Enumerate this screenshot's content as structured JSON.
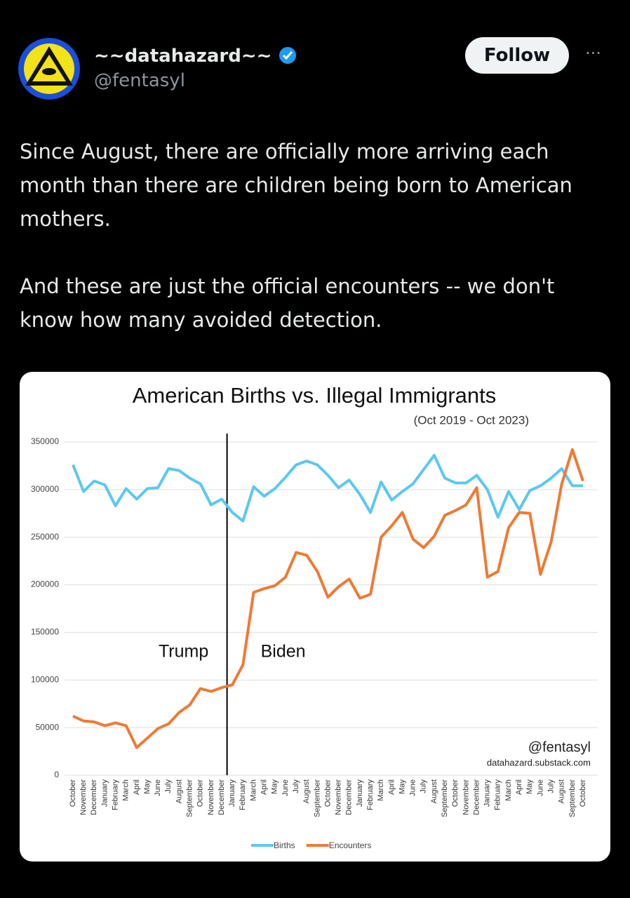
{
  "post": {
    "display_name": "~~datahazard~~",
    "handle": "@fentasyl",
    "follow_button": "Follow",
    "paragraphs": [
      "Since August, there are officially more arriving each month than there are children being born to American mothers.",
      "And these are just the official encounters -- we don't know how many avoided detection."
    ]
  },
  "chart_data": {
    "type": "line",
    "title": "American Births vs. Illegal Immigrants",
    "subtitle": "(Oct 2019 - Oct 2023)",
    "categories": [
      "October",
      "November",
      "December",
      "January",
      "February",
      "March",
      "April",
      "May",
      "June",
      "July",
      "August",
      "September",
      "October",
      "November",
      "December",
      "January",
      "February",
      "March",
      "April",
      "May",
      "June",
      "July",
      "August",
      "September",
      "October",
      "November",
      "December",
      "January",
      "February",
      "March",
      "April",
      "May",
      "June",
      "July",
      "August",
      "September",
      "October",
      "November",
      "December",
      "January",
      "February",
      "March",
      "April",
      "May",
      "June",
      "July",
      "August",
      "September",
      "October"
    ],
    "series": [
      {
        "name": "Births",
        "color": "#5cc8ee",
        "values": [
          326000,
          298000,
          309000,
          305000,
          283000,
          301000,
          290000,
          301000,
          302000,
          322000,
          320000,
          312000,
          306000,
          284000,
          290000,
          276000,
          267000,
          303000,
          293000,
          301000,
          313000,
          326000,
          330000,
          326000,
          315000,
          302000,
          310000,
          295000,
          276000,
          308000,
          289000,
          298000,
          306000,
          321000,
          336000,
          312000,
          307000,
          307000,
          315000,
          300000,
          271000,
          298000,
          279000,
          299000,
          304000,
          312000,
          322000,
          304000,
          304000
        ]
      },
      {
        "name": "Encounters",
        "color": "#ee7a34",
        "values": [
          62000,
          57000,
          56000,
          52000,
          55000,
          52000,
          29000,
          39000,
          49000,
          54000,
          66000,
          74000,
          91000,
          88000,
          92000,
          95000,
          116000,
          192000,
          196000,
          199000,
          208000,
          234000,
          231000,
          214000,
          187000,
          198000,
          206000,
          186000,
          190000,
          250000,
          262000,
          276000,
          248000,
          239000,
          251000,
          273000,
          278000,
          284000,
          302000,
          208000,
          214000,
          260000,
          276000,
          275000,
          211000,
          245000,
          306000,
          342000,
          309000
        ]
      }
    ],
    "ylim": [
      0,
      350000
    ],
    "yticks": [
      0,
      50000,
      100000,
      150000,
      200000,
      250000,
      300000,
      350000
    ],
    "grid": true,
    "annotations": [
      "Trump",
      "Biden"
    ],
    "watermark": "@fentasyl",
    "source": "datahazard.substack.com"
  }
}
